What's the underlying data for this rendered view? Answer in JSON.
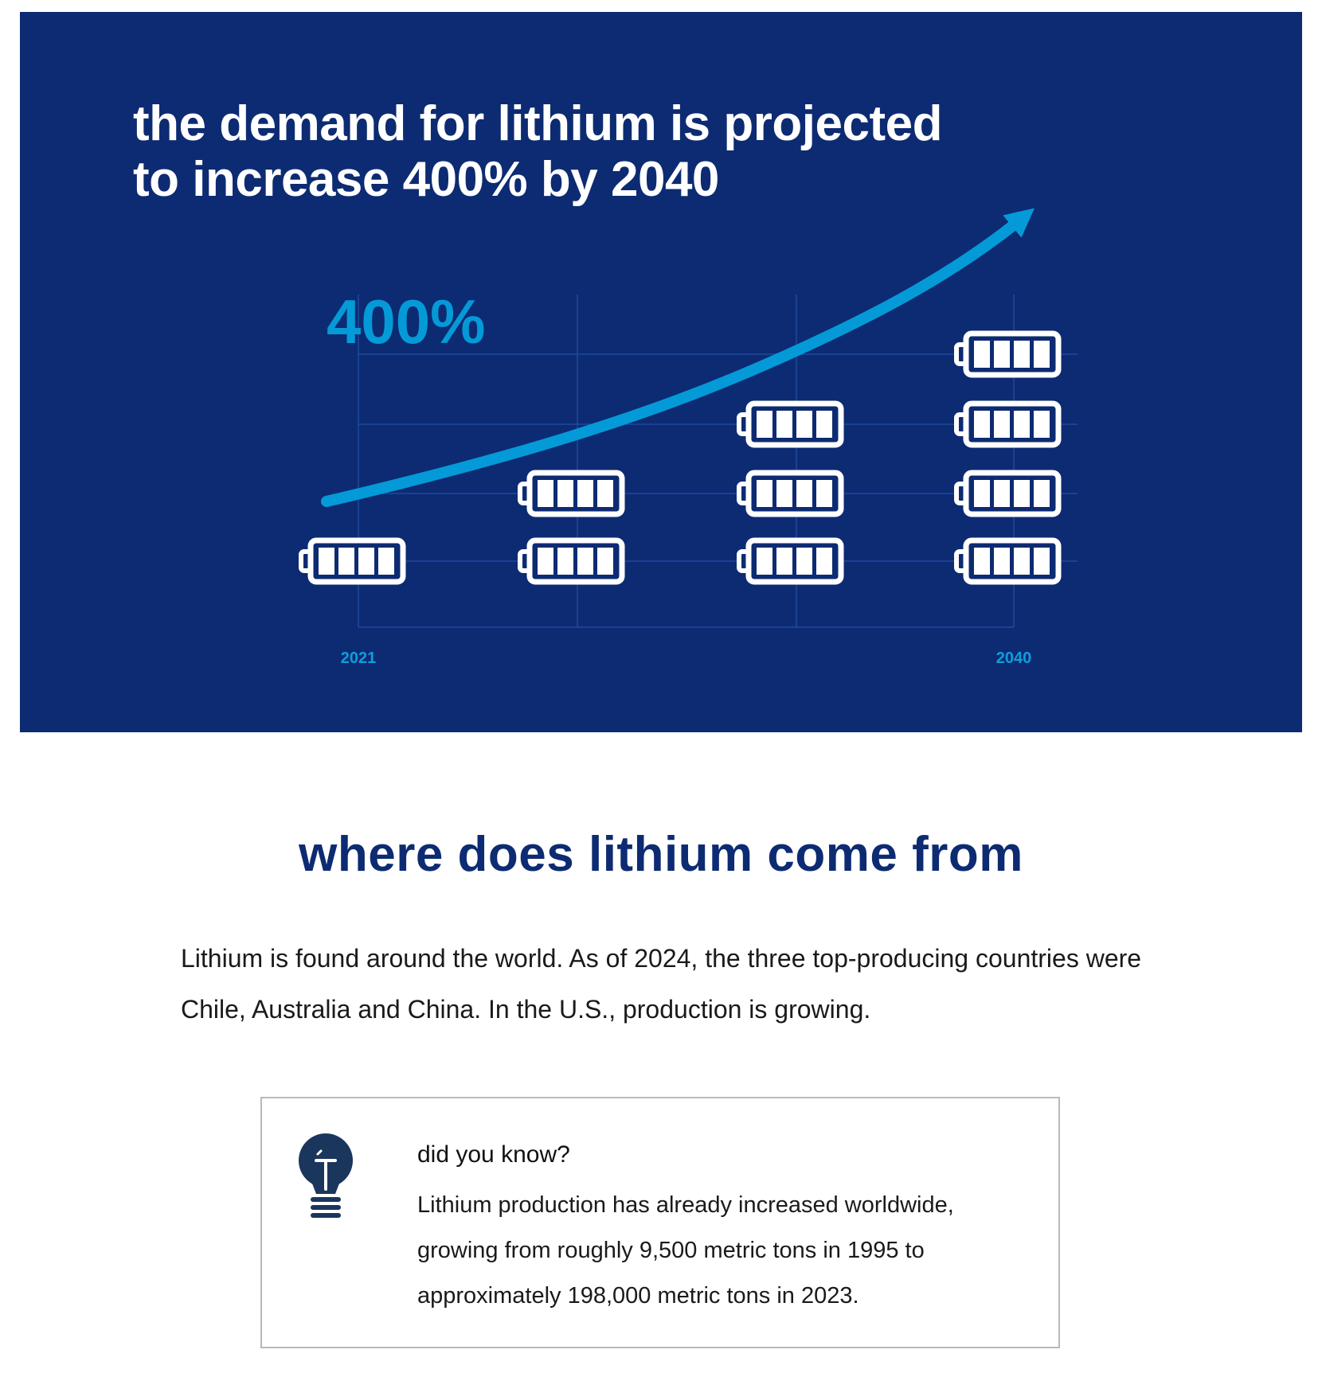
{
  "hero": {
    "title_line1": "the demand for lithium is projected",
    "title_line2": "to increase 400% by 2040"
  },
  "chart_data": {
    "type": "pictograph",
    "title": "the demand for lithium is projected to increase 400% by 2040",
    "annotation": "400%",
    "icon": "battery-icon",
    "categories": [
      "2021",
      "",
      "",
      "2040"
    ],
    "x_tick_labels": [
      "2021",
      "2040"
    ],
    "values": [
      1,
      2,
      3,
      4
    ],
    "trend": "increasing-arrow",
    "grid": true,
    "colors": {
      "background": "#0d2b72",
      "accent": "#049ad8",
      "icon": "#ffffff",
      "grid": "#1e49a0"
    }
  },
  "section": {
    "title": "where does lithium come from",
    "intro": "Lithium is found around the world. As of 2024, the three top-producing countries were Chile, Australia and China. In the U.S., production is growing."
  },
  "callout": {
    "icon": "lightbulb-icon",
    "heading": "did you know?",
    "body": "Lithium production has already increased worldwide, growing from roughly 9,500 metric tons in 1995 to approximately 198,000 metric tons in 2023."
  }
}
